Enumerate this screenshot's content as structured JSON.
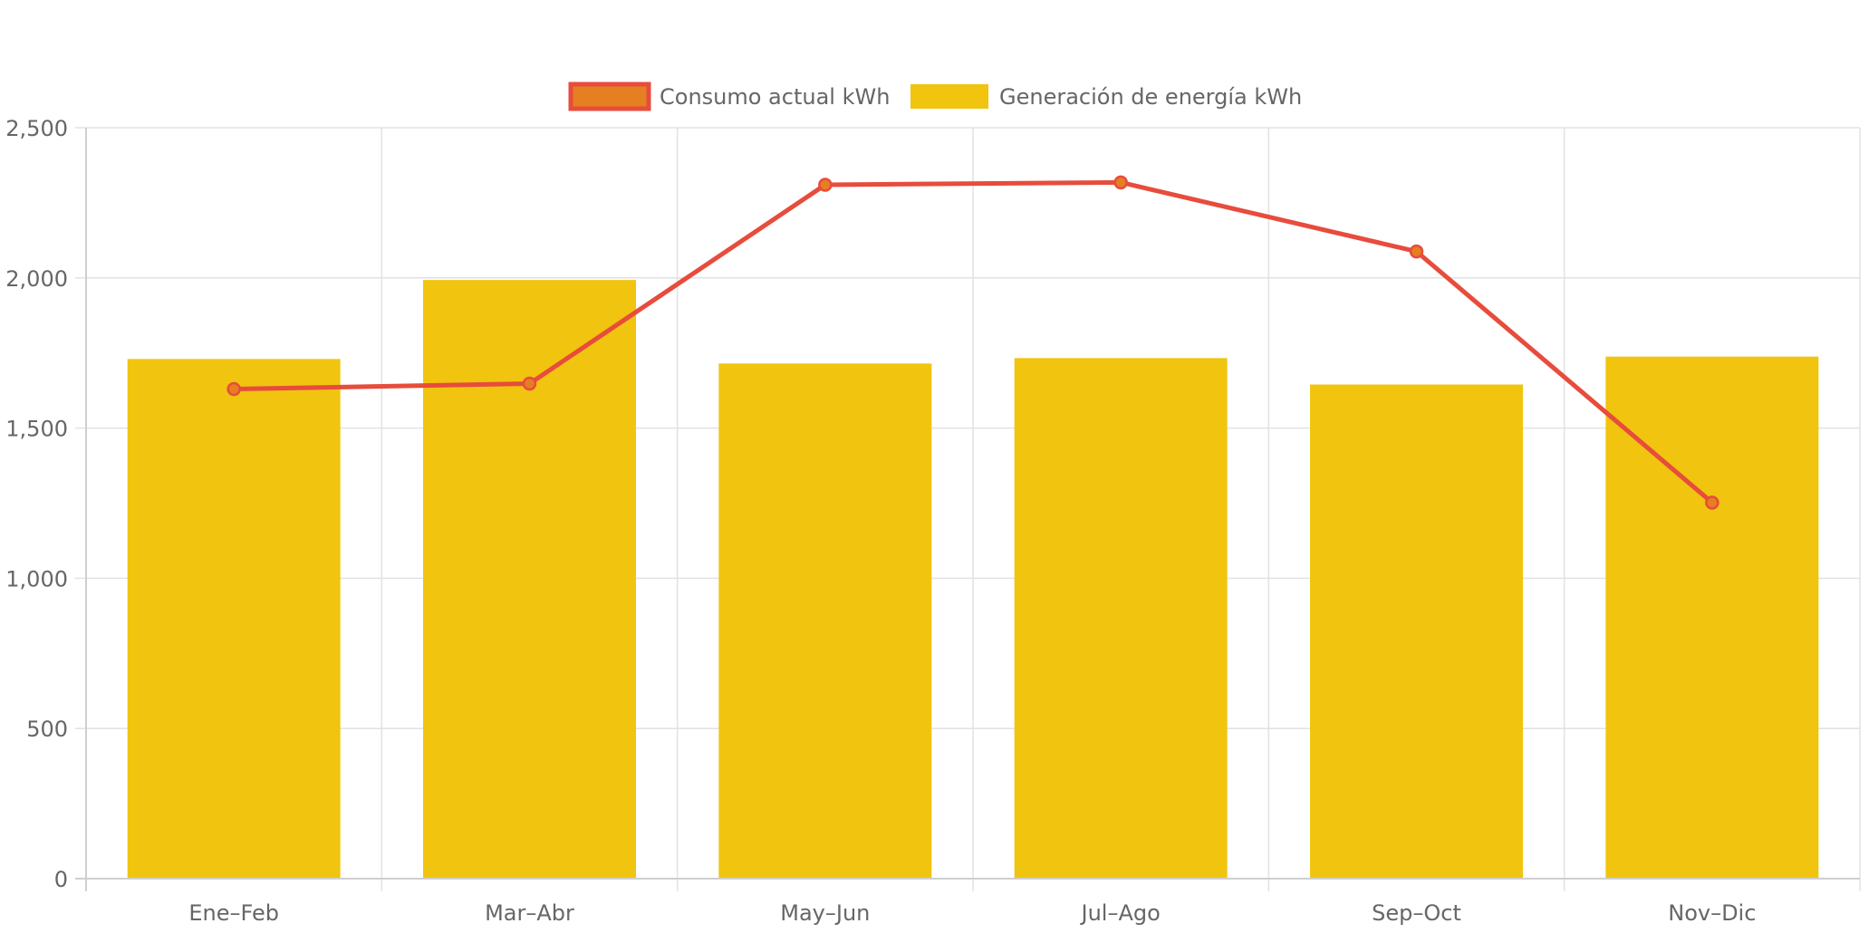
{
  "chart_data": {
    "type": "bar",
    "title": "",
    "xlabel": "",
    "ylabel": "",
    "categories": [
      "Ene–Feb",
      "Mar–Abr",
      "May–Jun",
      "Jul–Ago",
      "Sep–Oct",
      "Nov–Dic"
    ],
    "ylim": [
      0,
      2500
    ],
    "yticks": [
      0,
      500,
      1000,
      1500,
      2000,
      2500
    ],
    "ytick_labels": [
      "0",
      "500",
      "1,000",
      "1,500",
      "2,000",
      "2,500"
    ],
    "grid": true,
    "legend_position": "top-center",
    "series": [
      {
        "name": "Consumo actual kWh",
        "type": "line",
        "values": [
          1630,
          1648,
          2310,
          2318,
          2088,
          1252
        ],
        "color": "#e74c3c",
        "fill_color": "#e67e22"
      },
      {
        "name": "Generación de energía kWh",
        "type": "bar",
        "values": [
          1730,
          1993,
          1715,
          1733,
          1645,
          1738
        ],
        "color": "#f1c40f"
      }
    ]
  }
}
